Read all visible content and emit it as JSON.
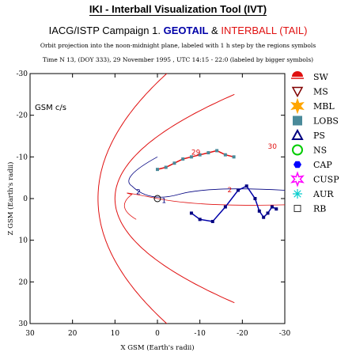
{
  "header": {
    "title": "IKI - Interball Visualization Tool (IVT)",
    "campaign": "IACG/ISTP Campaign 1.",
    "sc1": "GEOTAIL",
    "amp": "&",
    "sc2": "INTERBALL (TAIL)",
    "note1": "Orbit projection into the noon-midnight plane, labeled with 1 h step by the regions symbols",
    "note2": "Time N 13, (DOY 333), 29 November 1995 ,  UTC 14:15 - 22:0 (labeled by bigger symbols)"
  },
  "colors": {
    "geotail": "#0000a8",
    "interball": "#e01010",
    "lobs": "#4a8a9a",
    "ps": "#000080",
    "ns": "#00cc00",
    "cap": "#0000ff",
    "cusp": "#ff00ff",
    "aur": "#00cccc"
  },
  "chart_data": {
    "type": "scatter",
    "xlabel": "X GSM (Earth's radii)",
    "ylabel": "Z GSM (Earth's radii)",
    "frame_label": "GSM c/s",
    "xlim": [
      30,
      -30
    ],
    "ylim": [
      -30,
      30
    ],
    "y_inverted": true,
    "x_ticks": [
      30,
      20,
      10,
      0,
      -10,
      -20,
      -30
    ],
    "x_tick_labels": [
      "30",
      "20",
      "10",
      "0",
      "-10",
      "-20",
      "-30"
    ],
    "y_ticks": [
      -30,
      -20,
      -10,
      0,
      10,
      20,
      30
    ],
    "y_tick_labels": [
      "-30",
      "-20",
      "-10",
      "0",
      "10",
      "20",
      "30"
    ],
    "legend": [
      {
        "code": "SW",
        "name": "SW",
        "symbol": "half-circle",
        "color": "#e01010"
      },
      {
        "code": "MS",
        "name": "MS",
        "symbol": "triangle-down",
        "color": "#800000"
      },
      {
        "code": "MBL",
        "name": "MBL",
        "symbol": "star",
        "color": "#ffa500"
      },
      {
        "code": "LOBS",
        "name": "LOBS",
        "symbol": "square",
        "color": "#4a8a9a"
      },
      {
        "code": "PS",
        "name": "PS",
        "symbol": "triangle-up",
        "color": "#000080"
      },
      {
        "code": "NS",
        "name": "NS",
        "symbol": "circle",
        "color": "#00cc00"
      },
      {
        "code": "CAP",
        "name": "CAP",
        "symbol": "hexagon",
        "color": "#0000ff"
      },
      {
        "code": "CUSP",
        "name": "CUSP",
        "symbol": "star-outline",
        "color": "#ff00ff"
      },
      {
        "code": "AUR",
        "name": "AUR",
        "symbol": "asterisk",
        "color": "#00cccc"
      },
      {
        "code": "RB",
        "name": "RB",
        "symbol": "square-outline",
        "color": "#333333"
      }
    ],
    "series": [
      {
        "name": "GEOTAIL",
        "color": "#0000a8",
        "x": [
          -8,
          -10,
          -13,
          -16,
          -19,
          -21,
          -23,
          -24,
          -25,
          -26,
          -27,
          -28
        ],
        "z": [
          3.5,
          5,
          5.5,
          2,
          -2,
          -3,
          0,
          3,
          4.5,
          3.5,
          2,
          2.5
        ],
        "hour_labels": [
          {
            "text": "30",
            "x": -26,
            "z": -12
          }
        ]
      },
      {
        "name": "INTERBALL",
        "color": "#e01010",
        "x": [
          0,
          -2,
          -4,
          -6,
          -8,
          -10,
          -12,
          -14,
          -16,
          -18
        ],
        "z": [
          -7,
          -7.5,
          -8.5,
          -9.5,
          -10,
          -10.5,
          -11,
          -11.5,
          -10.5,
          -10
        ],
        "hour_labels": [
          {
            "text": "29",
            "x": -8,
            "z": -10.5
          },
          {
            "text": "2",
            "x": -16.5,
            "z": -1.5
          }
        ]
      }
    ],
    "model_curves": [
      {
        "name": "bow shock",
        "color": "#e01010"
      },
      {
        "name": "magnetopause",
        "color": "#e01010"
      }
    ],
    "earth_label": "2",
    "earth_marker": "1"
  }
}
